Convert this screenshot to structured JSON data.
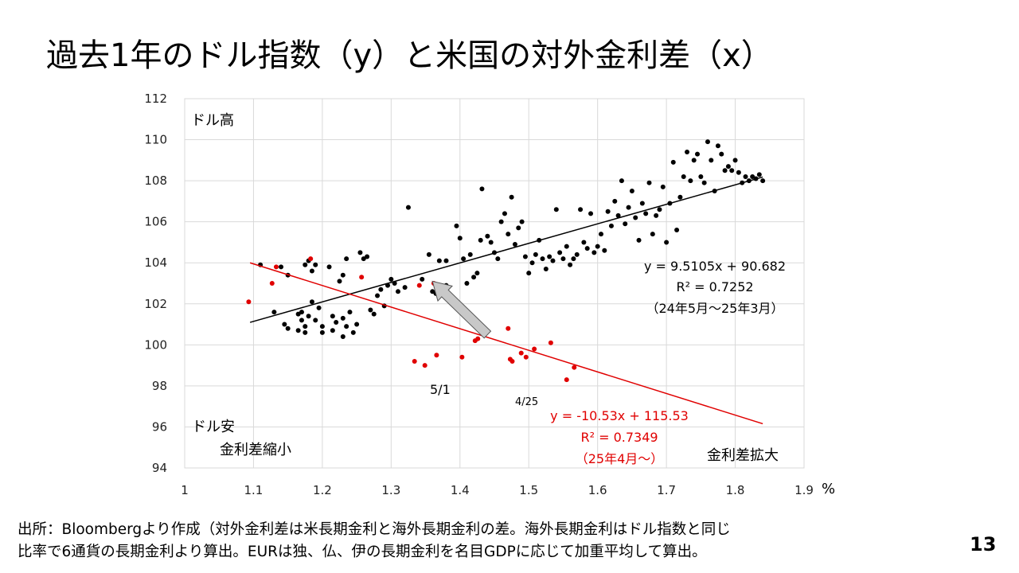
{
  "slide": {
    "title": "過去1年のドル指数（y）と米国の対外金利差（x）",
    "source_line1": "出所：Bloombergより作成（対外金利差は米長期金利と海外長期金利の差。海外長期金利はドル指数と同じ",
    "source_line2": "比率で6通貨の長期金利より算出。EURは独、仏、伊の長期金利を名目GDPに応じて加重平均して算出。",
    "page_number": "13"
  },
  "chart_data": {
    "type": "scatter",
    "xlim": [
      1.0,
      1.9
    ],
    "ylim": [
      94,
      112
    ],
    "x_ticks": [
      "1",
      "1.1",
      "1.2",
      "1.3",
      "1.4",
      "1.5",
      "1.6",
      "1.7",
      "1.8",
      "1.9"
    ],
    "y_ticks": [
      "94",
      "96",
      "98",
      "100",
      "102",
      "104",
      "106",
      "108",
      "110",
      "112"
    ],
    "x_unit": "%",
    "grid": true,
    "annotations": {
      "top_left": "ドル高",
      "bottom_left": "ドル安",
      "bottom_left_sub": "金利差縮小",
      "bottom_right": "金利差拡大",
      "date_5_1": "5/1",
      "date_4_25": "4/25"
    },
    "series": [
      {
        "name": "24年5月～25年3月",
        "color": "#000000",
        "trendline": {
          "slope": 9.5105,
          "intercept": 90.682,
          "x_range": [
            1.095,
            1.84
          ]
        },
        "equation": "y = 9.5105x + 90.682",
        "r2": "R² = 0.7252",
        "period": "（24年5月～25年3月）",
        "points": [
          [
            1.11,
            103.9
          ],
          [
            1.13,
            101.6
          ],
          [
            1.145,
            101.0
          ],
          [
            1.15,
            100.8
          ],
          [
            1.14,
            103.8
          ],
          [
            1.15,
            103.4
          ],
          [
            1.165,
            101.5
          ],
          [
            1.17,
            101.2
          ],
          [
            1.175,
            100.6
          ],
          [
            1.18,
            101.4
          ],
          [
            1.17,
            101.6
          ],
          [
            1.175,
            103.9
          ],
          [
            1.18,
            104.1
          ],
          [
            1.185,
            103.6
          ],
          [
            1.19,
            103.9
          ],
          [
            1.185,
            102.1
          ],
          [
            1.195,
            101.8
          ],
          [
            1.2,
            100.6
          ],
          [
            1.165,
            100.7
          ],
          [
            1.175,
            100.9
          ],
          [
            1.19,
            101.2
          ],
          [
            1.2,
            100.9
          ],
          [
            1.21,
            103.8
          ],
          [
            1.215,
            101.4
          ],
          [
            1.22,
            101.1
          ],
          [
            1.215,
            100.7
          ],
          [
            1.225,
            103.1
          ],
          [
            1.23,
            103.4
          ],
          [
            1.235,
            104.2
          ],
          [
            1.23,
            101.3
          ],
          [
            1.24,
            101.6
          ],
          [
            1.235,
            100.9
          ],
          [
            1.245,
            100.6
          ],
          [
            1.25,
            101.0
          ],
          [
            1.23,
            100.4
          ],
          [
            1.255,
            104.5
          ],
          [
            1.26,
            104.2
          ],
          [
            1.265,
            104.3
          ],
          [
            1.27,
            101.7
          ],
          [
            1.275,
            101.5
          ],
          [
            1.28,
            102.4
          ],
          [
            1.285,
            102.7
          ],
          [
            1.295,
            102.9
          ],
          [
            1.3,
            103.2
          ],
          [
            1.305,
            103.0
          ],
          [
            1.29,
            101.9
          ],
          [
            1.31,
            102.6
          ],
          [
            1.32,
            102.8
          ],
          [
            1.325,
            106.7
          ],
          [
            1.345,
            103.2
          ],
          [
            1.355,
            104.4
          ],
          [
            1.36,
            102.6
          ],
          [
            1.365,
            102.5
          ],
          [
            1.37,
            104.1
          ],
          [
            1.38,
            104.1
          ],
          [
            1.38,
            102.9
          ],
          [
            1.395,
            105.8
          ],
          [
            1.4,
            105.2
          ],
          [
            1.405,
            104.2
          ],
          [
            1.41,
            103.0
          ],
          [
            1.415,
            104.4
          ],
          [
            1.42,
            103.3
          ],
          [
            1.425,
            103.5
          ],
          [
            1.43,
            105.1
          ],
          [
            1.432,
            107.6
          ],
          [
            1.44,
            105.3
          ],
          [
            1.445,
            105.0
          ],
          [
            1.45,
            104.5
          ],
          [
            1.455,
            104.2
          ],
          [
            1.46,
            106.0
          ],
          [
            1.465,
            106.4
          ],
          [
            1.47,
            105.4
          ],
          [
            1.475,
            107.2
          ],
          [
            1.48,
            104.9
          ],
          [
            1.485,
            105.7
          ],
          [
            1.49,
            106.0
          ],
          [
            1.495,
            104.3
          ],
          [
            1.5,
            103.5
          ],
          [
            1.505,
            104.0
          ],
          [
            1.51,
            104.4
          ],
          [
            1.515,
            105.1
          ],
          [
            1.52,
            104.2
          ],
          [
            1.525,
            103.7
          ],
          [
            1.53,
            104.3
          ],
          [
            1.535,
            104.1
          ],
          [
            1.54,
            106.6
          ],
          [
            1.545,
            104.5
          ],
          [
            1.55,
            104.2
          ],
          [
            1.555,
            104.8
          ],
          [
            1.56,
            103.9
          ],
          [
            1.565,
            104.2
          ],
          [
            1.57,
            104.4
          ],
          [
            1.575,
            106.6
          ],
          [
            1.58,
            105.0
          ],
          [
            1.585,
            104.7
          ],
          [
            1.59,
            106.4
          ],
          [
            1.595,
            104.5
          ],
          [
            1.6,
            104.8
          ],
          [
            1.605,
            105.4
          ],
          [
            1.61,
            104.6
          ],
          [
            1.615,
            106.5
          ],
          [
            1.62,
            105.8
          ],
          [
            1.625,
            107.0
          ],
          [
            1.63,
            106.3
          ],
          [
            1.635,
            108.0
          ],
          [
            1.64,
            105.9
          ],
          [
            1.645,
            106.7
          ],
          [
            1.65,
            107.5
          ],
          [
            1.655,
            106.2
          ],
          [
            1.66,
            105.1
          ],
          [
            1.665,
            106.9
          ],
          [
            1.67,
            106.4
          ],
          [
            1.675,
            107.9
          ],
          [
            1.68,
            105.4
          ],
          [
            1.685,
            106.3
          ],
          [
            1.69,
            106.6
          ],
          [
            1.695,
            107.7
          ],
          [
            1.7,
            105.0
          ],
          [
            1.705,
            106.9
          ],
          [
            1.71,
            108.9
          ],
          [
            1.715,
            105.6
          ],
          [
            1.72,
            107.2
          ],
          [
            1.725,
            108.2
          ],
          [
            1.73,
            109.4
          ],
          [
            1.735,
            108.0
          ],
          [
            1.74,
            109.0
          ],
          [
            1.745,
            109.3
          ],
          [
            1.75,
            108.2
          ],
          [
            1.755,
            107.9
          ],
          [
            1.76,
            109.9
          ],
          [
            1.765,
            109.0
          ],
          [
            1.77,
            107.5
          ],
          [
            1.775,
            109.7
          ],
          [
            1.78,
            109.3
          ],
          [
            1.785,
            108.5
          ],
          [
            1.79,
            108.7
          ],
          [
            1.795,
            108.5
          ],
          [
            1.8,
            109.0
          ],
          [
            1.805,
            108.4
          ],
          [
            1.81,
            107.9
          ],
          [
            1.815,
            108.2
          ],
          [
            1.82,
            108.0
          ],
          [
            1.825,
            108.2
          ],
          [
            1.83,
            108.1
          ],
          [
            1.835,
            108.3
          ],
          [
            1.84,
            108.0
          ]
        ]
      },
      {
        "name": "25年4月～",
        "color": "#e00000",
        "trendline": {
          "slope": -10.53,
          "intercept": 115.53,
          "x_range": [
            1.095,
            1.84
          ]
        },
        "equation": "y = -10.53x + 115.53",
        "r2": "R² = 0.7349",
        "period": "（25年4月～）",
        "points": [
          [
            1.093,
            102.1
          ],
          [
            1.127,
            103.0
          ],
          [
            1.133,
            103.8
          ],
          [
            1.183,
            104.2
          ],
          [
            1.257,
            103.3
          ],
          [
            1.334,
            99.2
          ],
          [
            1.341,
            102.9
          ],
          [
            1.349,
            99.0
          ],
          [
            1.362,
            103.0
          ],
          [
            1.366,
            99.5
          ],
          [
            1.403,
            99.4
          ],
          [
            1.422,
            100.2
          ],
          [
            1.426,
            100.3
          ],
          [
            1.47,
            100.8
          ],
          [
            1.473,
            99.3
          ],
          [
            1.476,
            99.2
          ],
          [
            1.489,
            99.6
          ],
          [
            1.496,
            99.4
          ],
          [
            1.508,
            99.8
          ],
          [
            1.532,
            100.1
          ],
          [
            1.555,
            98.3
          ],
          [
            1.566,
            98.9
          ]
        ]
      }
    ],
    "arrow": {
      "from": [
        1.44,
        100.5
      ],
      "to": [
        1.36,
        103.1
      ],
      "color": "#c8c8c8"
    }
  }
}
